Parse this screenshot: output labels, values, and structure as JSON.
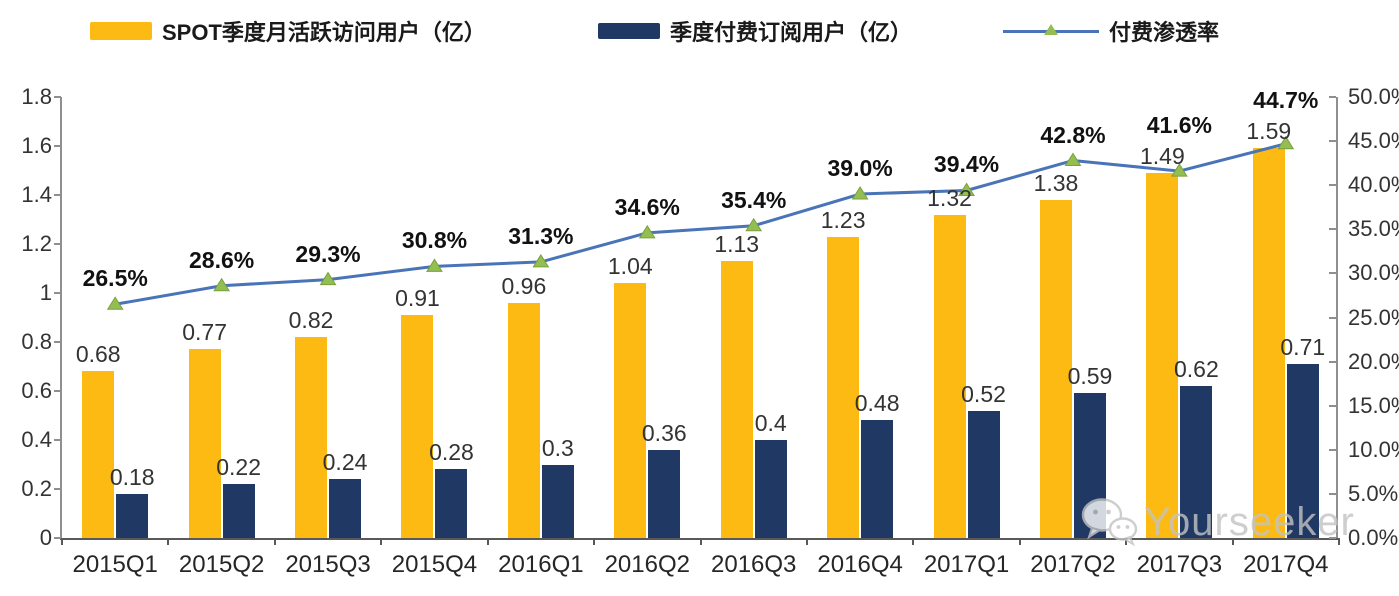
{
  "legend": {
    "items": [
      {
        "label": "SPOT季度月活跃访问用户（亿）"
      },
      {
        "label": "季度付费订阅用户（亿）"
      },
      {
        "label": "付费渗透率"
      }
    ]
  },
  "chart_data": {
    "type": "combo",
    "categories": [
      "2015Q1",
      "2015Q2",
      "2015Q3",
      "2015Q4",
      "2016Q1",
      "2016Q2",
      "2016Q3",
      "2016Q4",
      "2017Q1",
      "2017Q2",
      "2017Q3",
      "2017Q4"
    ],
    "series": [
      {
        "name": "SPOT季度月活跃访问用户（亿）",
        "type": "bar",
        "axis": "left",
        "color": "#FCBA13",
        "values": [
          0.68,
          0.77,
          0.82,
          0.91,
          0.96,
          1.04,
          1.13,
          1.23,
          1.32,
          1.38,
          1.49,
          1.59
        ],
        "labels": [
          "0.68",
          "0.77",
          "0.82",
          "0.91",
          "0.96",
          "1.04",
          "1.13",
          "1.23",
          "1.32",
          "1.38",
          "1.49",
          "1.59"
        ]
      },
      {
        "name": "季度付费订阅用户（亿）",
        "type": "bar",
        "axis": "left",
        "color": "#1F3864",
        "values": [
          0.18,
          0.22,
          0.24,
          0.28,
          0.3,
          0.36,
          0.4,
          0.48,
          0.52,
          0.59,
          0.62,
          0.71
        ],
        "labels": [
          "0.18",
          "0.22",
          "0.24",
          "0.28",
          "0.3",
          "0.36",
          "0.4",
          "0.48",
          "0.52",
          "0.59",
          "0.62",
          "0.71"
        ]
      },
      {
        "name": "付费渗透率",
        "type": "line",
        "axis": "right",
        "color": "#4A74B8",
        "marker": "triangle",
        "marker_color": "#94BE52",
        "values": [
          26.5,
          28.6,
          29.3,
          30.8,
          31.3,
          34.6,
          35.4,
          39.0,
          39.4,
          42.8,
          41.6,
          44.7
        ],
        "labels": [
          "26.5%",
          "28.6%",
          "29.3%",
          "30.8%",
          "31.3%",
          "34.6%",
          "35.4%",
          "39.0%",
          "39.4%",
          "42.8%",
          "41.6%",
          "44.7%"
        ]
      }
    ],
    "left_axis": {
      "min": 0,
      "max": 1.8,
      "tick_labels": [
        "0",
        "0.2",
        "0.4",
        "0.6",
        "0.8",
        "1",
        "1.2",
        "1.4",
        "1.6",
        "1.8"
      ]
    },
    "right_axis": {
      "min": 0,
      "max": 50,
      "tick_labels": [
        "0.0%",
        "5.0%",
        "10.0%",
        "15.0%",
        "20.0%",
        "25.0%",
        "30.0%",
        "35.0%",
        "40.0%",
        "45.0%",
        "50.0%"
      ]
    },
    "grid": false,
    "legend_position": "top"
  },
  "watermark": {
    "text": "Yourseeker",
    "icon": "wechat-icon"
  }
}
